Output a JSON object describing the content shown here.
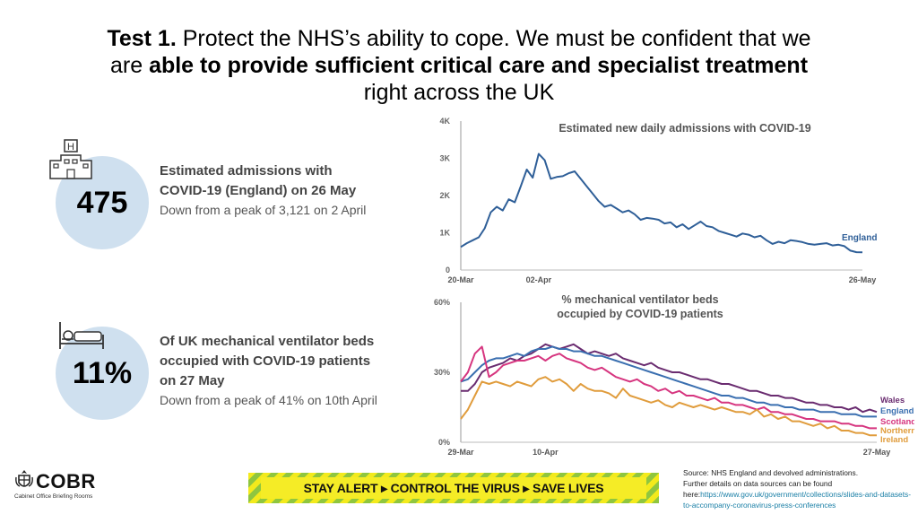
{
  "title": {
    "part1_bold": "Test 1.",
    "part2": " Protect the NHS’s ability to cope. We must be confident that we are ",
    "part3_bold": "able to provide sufficient critical care and specialist treatment",
    "part4": " right across the UK"
  },
  "stat1": {
    "value": "475",
    "line1": "Estimated admissions with",
    "line2": "COVID-19 (England) on 26 May",
    "sub": "Down from a peak of 3,121 on 2 April",
    "icon": "hospital-icon"
  },
  "stat2": {
    "value": "11%",
    "line1": "Of UK mechanical ventilator beds",
    "line2": "occupied with COVID-19 patients",
    "line3": "on 27 May",
    "sub": "Down from a peak of 41% on 10th April",
    "icon": "hospital-bed-icon"
  },
  "chart_data": [
    {
      "type": "line",
      "title": "Estimated new daily admissions with COVID-19",
      "ylim": [
        0,
        4000
      ],
      "y_tick_labels": [
        "0",
        "1K",
        "2K",
        "3K",
        "4K"
      ],
      "y_tick_values": [
        0,
        1000,
        2000,
        3000,
        4000
      ],
      "x_tick_labels": [
        "20-Mar",
        "02-Apr",
        "26-May"
      ],
      "x_tick_indices": [
        0,
        13,
        67
      ],
      "grid": false,
      "series": [
        {
          "name": "England",
          "color": "#2f5f98",
          "values": [
            620,
            720,
            800,
            880,
            1120,
            1550,
            1700,
            1600,
            1900,
            1820,
            2250,
            2700,
            2480,
            3121,
            2950,
            2450,
            2500,
            2520,
            2600,
            2650,
            2450,
            2250,
            2050,
            1850,
            1700,
            1750,
            1650,
            1550,
            1600,
            1500,
            1350,
            1400,
            1380,
            1350,
            1250,
            1280,
            1150,
            1230,
            1100,
            1200,
            1300,
            1180,
            1150,
            1050,
            1000,
            950,
            900,
            980,
            950,
            880,
            920,
            800,
            700,
            760,
            720,
            800,
            780,
            750,
            700,
            680,
            700,
            720,
            660,
            680,
            640,
            520,
            480,
            475
          ]
        }
      ]
    },
    {
      "type": "line",
      "title": "% mechanical ventilator beds occupied by COVID-19 patients",
      "ylim": [
        0,
        60
      ],
      "y_tick_labels": [
        "0%",
        "30%",
        "60%"
      ],
      "y_tick_values": [
        0,
        30,
        60
      ],
      "x_tick_labels": [
        "29-Mar",
        "10-Apr",
        "27-May"
      ],
      "x_tick_indices": [
        0,
        12,
        59
      ],
      "grid": false,
      "series": [
        {
          "name": "Wales",
          "color": "#6a2c70",
          "values": [
            22,
            22,
            25,
            30,
            32,
            33,
            34,
            36,
            35,
            37,
            38,
            40,
            42,
            41,
            40,
            41,
            42,
            40,
            38,
            39,
            38,
            37,
            38,
            36,
            35,
            34,
            33,
            34,
            32,
            31,
            30,
            30,
            29,
            28,
            27,
            27,
            26,
            25,
            25,
            24,
            23,
            22,
            22,
            21,
            20,
            20,
            19,
            19,
            18,
            17,
            17,
            16,
            16,
            15,
            15,
            14,
            15,
            13,
            14,
            13
          ]
        },
        {
          "name": "England",
          "color": "#3a6fb0",
          "values": [
            26,
            27,
            30,
            33,
            35,
            36,
            36,
            37,
            38,
            37,
            39,
            40,
            40,
            41,
            40,
            40,
            39,
            39,
            38,
            37,
            37,
            36,
            35,
            34,
            33,
            32,
            31,
            30,
            29,
            28,
            27,
            26,
            25,
            24,
            23,
            22,
            21,
            20,
            20,
            19,
            19,
            18,
            17,
            17,
            16,
            16,
            15,
            15,
            14,
            14,
            14,
            13,
            13,
            13,
            12,
            12,
            12,
            11,
            11,
            11
          ]
        },
        {
          "name": "Scotland",
          "color": "#d6357f",
          "values": [
            26,
            30,
            38,
            41,
            28,
            30,
            33,
            34,
            35,
            35,
            36,
            37,
            35,
            37,
            38,
            36,
            35,
            34,
            32,
            31,
            32,
            30,
            28,
            27,
            26,
            27,
            25,
            24,
            22,
            23,
            21,
            22,
            20,
            20,
            19,
            18,
            19,
            17,
            17,
            16,
            16,
            15,
            14,
            15,
            13,
            13,
            12,
            12,
            11,
            10,
            10,
            9,
            9,
            9,
            8,
            8,
            7,
            7,
            6,
            6
          ]
        },
        {
          "name": "Northern Ireland",
          "color": "#e09c3c",
          "values": [
            10,
            14,
            20,
            26,
            25,
            26,
            25,
            24,
            26,
            25,
            24,
            27,
            28,
            26,
            27,
            25,
            22,
            25,
            23,
            22,
            22,
            21,
            19,
            23,
            20,
            19,
            18,
            17,
            18,
            16,
            15,
            17,
            16,
            15,
            16,
            15,
            14,
            15,
            14,
            13,
            13,
            12,
            14,
            11,
            12,
            10,
            11,
            9,
            9,
            8,
            7,
            8,
            6,
            7,
            5,
            5,
            4,
            4,
            3,
            3
          ]
        }
      ]
    }
  ],
  "labels_chart2": {
    "wales": "Wales",
    "england": "England",
    "scotland": "Scotland",
    "ni_line1": "Northern",
    "ni_line2": "Ireland"
  },
  "logo": {
    "name": "COBR",
    "sub": "Cabinet Office Briefing Rooms",
    "icon": "royal-crest-icon"
  },
  "banner": {
    "text": "STAY ALERT ▸ CONTROL THE VIRUS ▸ SAVE LIVES"
  },
  "source": {
    "line1": "Source: NHS England and devolved administrations.",
    "line2": "Further details on data sources can be found",
    "prefix": "here:",
    "link": "https://www.gov.uk/government/collections/slides-and-datasets- to-accompany-coronavirus-press-conferences"
  }
}
